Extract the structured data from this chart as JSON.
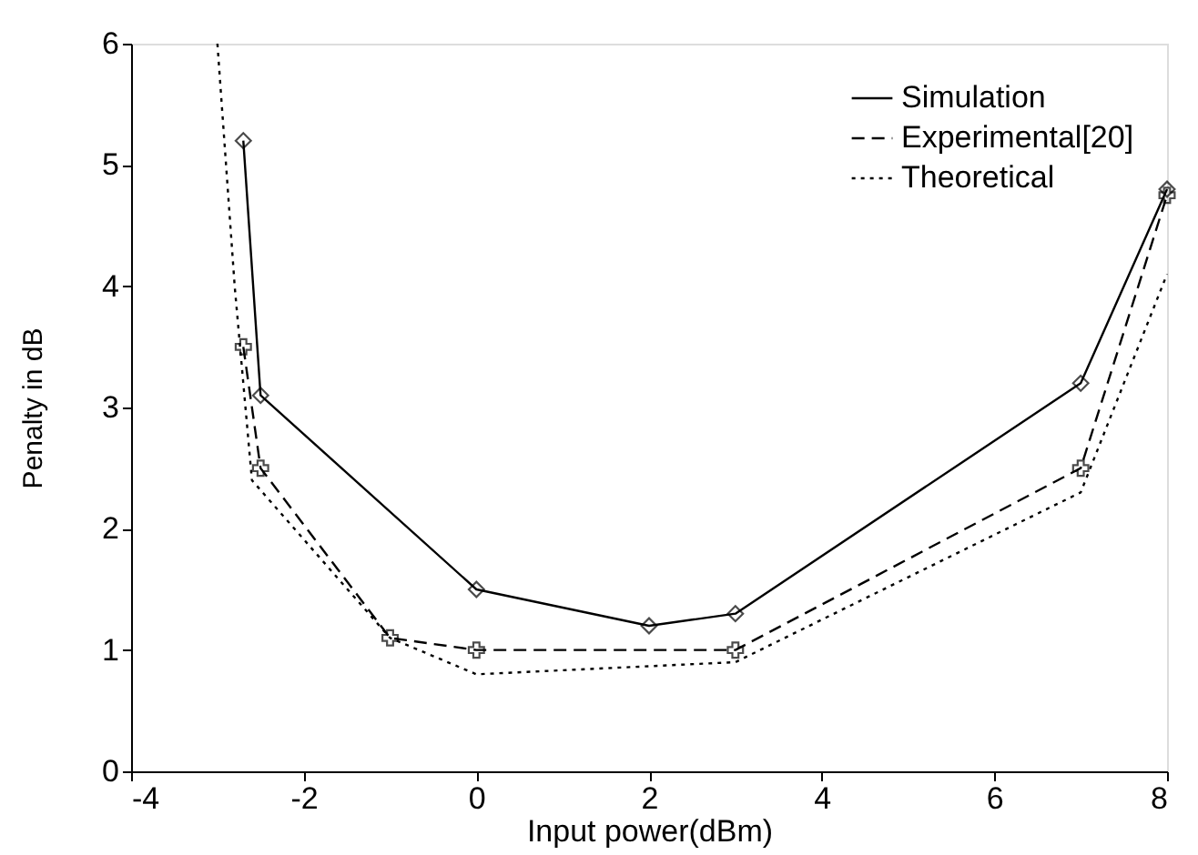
{
  "chart_data": {
    "type": "line",
    "xlabel": "Input power(dBm)",
    "ylabel": "Penalty in dB",
    "xlim": [
      -4,
      8
    ],
    "xticks": [
      -4,
      -2,
      0,
      2,
      4,
      6,
      8
    ],
    "ylim": [
      0,
      6
    ],
    "yticks": [
      0,
      1,
      2,
      3,
      4,
      5,
      6
    ],
    "grid": false,
    "legend": "top right",
    "series": [
      {
        "name": "Simulation",
        "color": "#000000",
        "marker": "diamond",
        "line_style": "solid",
        "x": [
          -2.7,
          -2.5,
          0,
          2,
          3,
          7,
          8
        ],
        "values": [
          5.2,
          3.1,
          1.5,
          1.2,
          1.3,
          3.2,
          4.8
        ]
      },
      {
        "name": "Experimental[20]",
        "color": "#000000",
        "marker": "cross",
        "line_style": "dashed",
        "x": [
          -2.7,
          -2.5,
          -1,
          0,
          3,
          7,
          8
        ],
        "values": [
          3.5,
          2.5,
          1.1,
          1.0,
          1.0,
          2.5,
          4.75
        ]
      },
      {
        "name": "Theoretical",
        "color": "#000000",
        "marker": "none",
        "line_style": "dotted",
        "x": [
          -3.0,
          -2.8,
          -2.6,
          -1,
          0,
          3,
          7,
          8
        ],
        "values": [
          6.0,
          4.0,
          2.4,
          1.1,
          0.8,
          0.9,
          2.3,
          4.1
        ]
      }
    ]
  }
}
